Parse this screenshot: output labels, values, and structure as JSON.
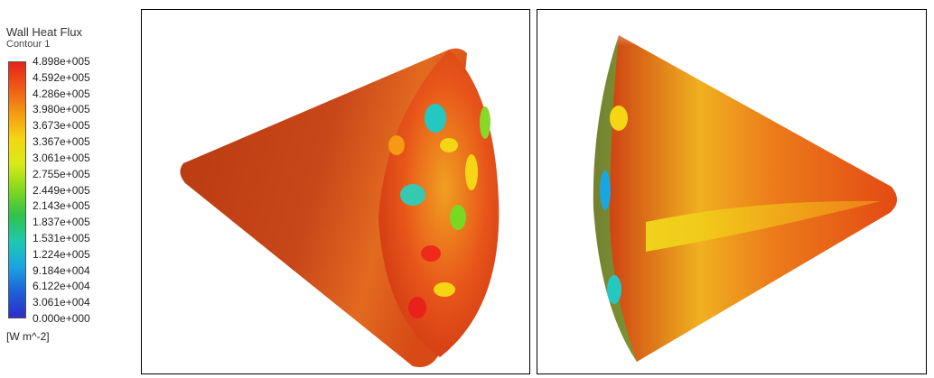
{
  "legend": {
    "title": "Wall Heat Flux",
    "subtitle": "Contour 1",
    "unit": "[W m^-2]",
    "ticks": [
      "4.898e+005",
      "4.592e+005",
      "4.286e+005",
      "3.980e+005",
      "3.673e+005",
      "3.367e+005",
      "3.061e+005",
      "2.755e+005",
      "2.449e+005",
      "2.143e+005",
      "1.837e+005",
      "1.531e+005",
      "1.224e+005",
      "9.184e+004",
      "6.122e+004",
      "3.061e+004",
      "0.000e+000"
    ],
    "colors": [
      "#e8221a",
      "#ef5a16",
      "#f59a12",
      "#f5d514",
      "#d8ea18",
      "#82d81e",
      "#2fc24a",
      "#1ec8b0",
      "#1aa6e0",
      "#1f5fd8",
      "#2a2ec8"
    ]
  },
  "views": {
    "left": {
      "name": "cone-view-left"
    },
    "right": {
      "name": "cone-view-right"
    }
  }
}
